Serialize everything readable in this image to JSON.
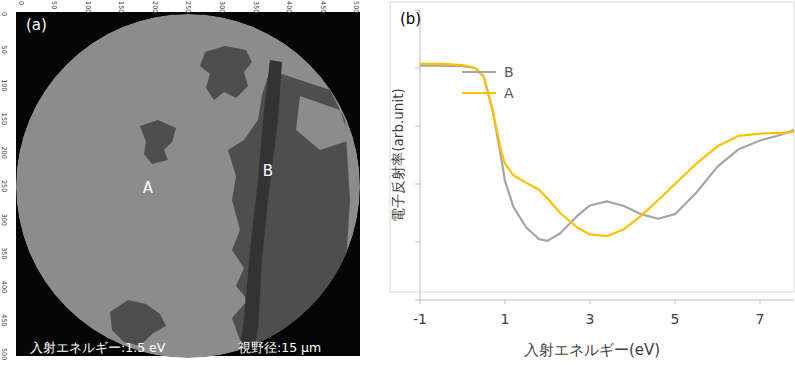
{
  "image_panel": {
    "label": "(a)",
    "xlim": [
      0,
      512
    ],
    "ylim": [
      0,
      512
    ],
    "xticks": [
      0,
      50,
      100,
      150,
      200,
      250,
      300,
      350,
      400,
      450,
      500
    ],
    "yticks": [
      0,
      50,
      100,
      150,
      200,
      250,
      300,
      350,
      400,
      450,
      500
    ],
    "regions": [
      {
        "label": "A"
      },
      {
        "label": "B"
      }
    ],
    "energy_text": "入射エネルギー:1.5 eV",
    "fov_text": "視野径:15 μm"
  },
  "chart_data": {
    "type": "line",
    "title": "(b)",
    "x_label": "入射エネルギー(eV)",
    "y_label": "電子反射率(arb.unit)",
    "x": [
      -1,
      -0.5,
      0,
      0.3,
      0.5,
      0.7,
      0.9,
      1.0,
      1.2,
      1.5,
      1.8,
      2.0,
      2.3,
      2.7,
      3.0,
      3.4,
      3.8,
      4.2,
      4.6,
      5.0,
      5.5,
      6.0,
      6.5,
      7.0,
      7.5,
      7.8
    ],
    "series": [
      {
        "name": "B",
        "color": "#a6a6a6",
        "values": [
          4.04,
          4.04,
          4.03,
          4.0,
          3.85,
          3.3,
          2.5,
          2.05,
          1.6,
          1.25,
          1.05,
          1.02,
          1.15,
          1.45,
          1.63,
          1.7,
          1.62,
          1.48,
          1.4,
          1.48,
          1.85,
          2.3,
          2.6,
          2.75,
          2.85,
          2.93
        ]
      },
      {
        "name": "A",
        "color": "#ffc000",
        "values": [
          4.07,
          4.07,
          4.05,
          4.0,
          3.85,
          3.3,
          2.6,
          2.35,
          2.15,
          2.02,
          1.9,
          1.75,
          1.5,
          1.25,
          1.13,
          1.1,
          1.22,
          1.45,
          1.72,
          2.0,
          2.35,
          2.65,
          2.83,
          2.87,
          2.88,
          2.9
        ]
      }
    ],
    "xlim": [
      -1,
      7.8
    ],
    "xticks": [
      -1,
      1,
      3,
      5,
      7
    ],
    "ylim": [
      0,
      5
    ],
    "yticks": [
      0,
      1,
      2,
      3,
      4,
      5
    ],
    "grid": false,
    "legend": "top",
    "tick_labels": "x"
  }
}
